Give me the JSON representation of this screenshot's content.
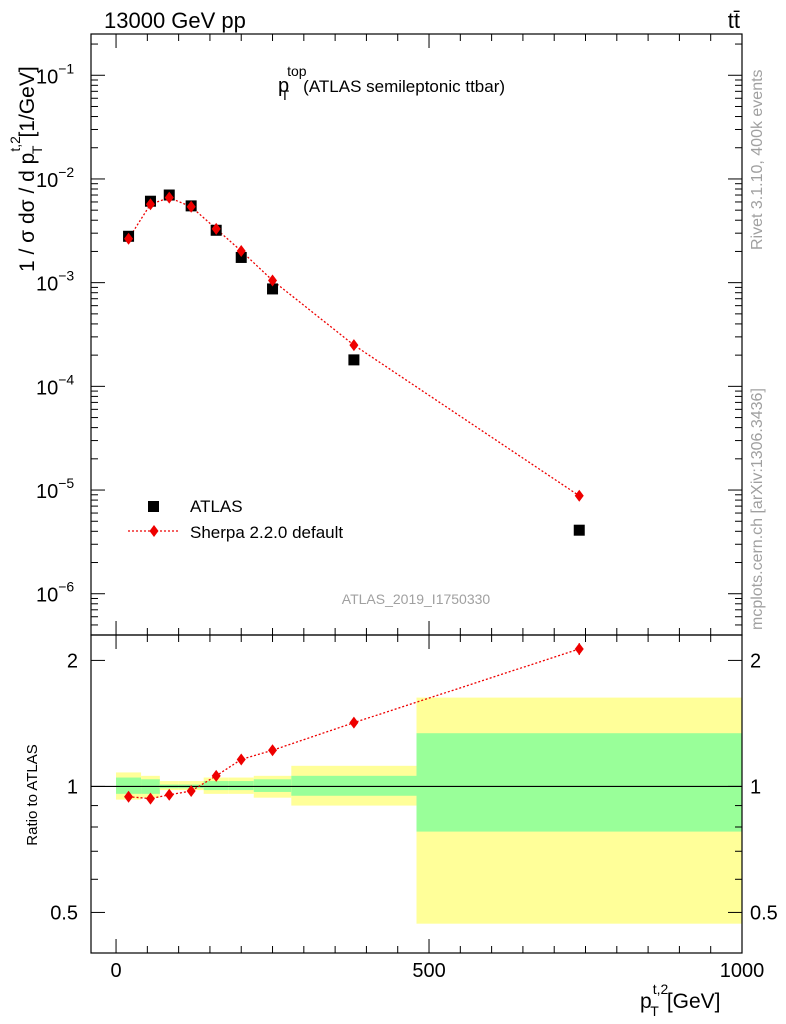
{
  "header": {
    "left": "13000 GeV pp",
    "right": "tt̄"
  },
  "side": {
    "rivet": "Rivet 3.1.10,  400k events",
    "mcplots": "mcplots.cern.ch [arXiv:1306.3436]"
  },
  "colors": {
    "sherpa": "#ee0000",
    "data": "#000000",
    "band_inner": "#99ff99",
    "band_outer": "#ffff99",
    "watermark": "#a0a0a0"
  },
  "chart_data": [
    {
      "type": "scatter",
      "panel": "main",
      "title": {
        "base": "p",
        "sup": "top",
        "sub": "T",
        "rest": "(ATLAS semileptonic ttbar)"
      },
      "analysis_label": "ATLAS_2019_I1750330",
      "ylabel": {
        "main": "1 / σ dσ / d p",
        "sup": "t,2",
        "sub": "T",
        "unit": "[1/GeV]"
      },
      "yscale": "log",
      "ylim": [
        4e-07,
        0.25
      ],
      "xlim": [
        -40,
        1000
      ],
      "yticks": [
        {
          "value": 1e-06,
          "base": "10",
          "exp": "−6"
        },
        {
          "value": 1e-05,
          "base": "10",
          "exp": "−5"
        },
        {
          "value": 0.0001,
          "base": "10",
          "exp": "−4"
        },
        {
          "value": 0.001,
          "base": "10",
          "exp": "−3"
        },
        {
          "value": 0.01,
          "base": "10",
          "exp": "−2"
        },
        {
          "value": 0.1,
          "base": "10",
          "exp": "−1"
        }
      ],
      "legend": {
        "placement": "bottom-left",
        "entries": [
          "ATLAS",
          "Sherpa 2.2.0 default"
        ]
      },
      "series": [
        {
          "name": "ATLAS",
          "marker": "square",
          "x": [
            20,
            55,
            85,
            120,
            160,
            200,
            250,
            380,
            740
          ],
          "y": [
            0.0028,
            0.0061,
            0.007,
            0.0055,
            0.0032,
            0.00175,
            0.00087,
            0.00018,
            4.1e-06
          ]
        },
        {
          "name": "Sherpa 2.2.0 default",
          "marker": "diamond",
          "x": [
            20,
            55,
            85,
            120,
            160,
            200,
            250,
            380,
            740
          ],
          "y": [
            0.00265,
            0.0057,
            0.0066,
            0.0054,
            0.0033,
            0.00202,
            0.00105,
            0.00025,
            8.8e-06
          ]
        }
      ]
    },
    {
      "type": "line",
      "panel": "ratio",
      "ylabel": "Ratio to ATLAS",
      "xlabel": {
        "base": "p",
        "sup": "t,2",
        "sub": "T",
        "unit": "[GeV]"
      },
      "yscale": "log",
      "ylim": [
        0.4,
        2.3
      ],
      "xlim": [
        -40,
        1000
      ],
      "xticks": [
        0,
        500,
        1000
      ],
      "yticks": [
        0.5,
        1,
        2
      ],
      "bands": [
        {
          "x0": 0,
          "x1": 40,
          "inner": [
            0.96,
            1.05
          ],
          "outer": [
            0.93,
            1.08
          ]
        },
        {
          "x0": 40,
          "x1": 70,
          "inner": [
            0.96,
            1.04
          ],
          "outer": [
            0.94,
            1.06
          ]
        },
        {
          "x0": 70,
          "x1": 100,
          "inner": [
            0.99,
            1.01
          ],
          "outer": [
            0.98,
            1.03
          ]
        },
        {
          "x0": 100,
          "x1": 140,
          "inner": [
            0.99,
            1.01
          ],
          "outer": [
            0.98,
            1.03
          ]
        },
        {
          "x0": 140,
          "x1": 180,
          "inner": [
            0.98,
            1.03
          ],
          "outer": [
            0.96,
            1.05
          ]
        },
        {
          "x0": 180,
          "x1": 220,
          "inner": [
            0.98,
            1.03
          ],
          "outer": [
            0.96,
            1.05
          ]
        },
        {
          "x0": 220,
          "x1": 280,
          "inner": [
            0.97,
            1.04
          ],
          "outer": [
            0.94,
            1.06
          ]
        },
        {
          "x0": 280,
          "x1": 480,
          "inner": [
            0.95,
            1.06
          ],
          "outer": [
            0.9,
            1.12
          ]
        },
        {
          "x0": 480,
          "x1": 1000,
          "inner": [
            0.78,
            1.34
          ],
          "outer": [
            0.47,
            1.63
          ]
        }
      ],
      "series": [
        {
          "name": "Sherpa 2.2.0 default / ATLAS",
          "x": [
            20,
            55,
            85,
            120,
            160,
            200,
            250,
            380,
            740
          ],
          "y": [
            0.945,
            0.935,
            0.955,
            0.975,
            1.06,
            1.16,
            1.22,
            1.42,
            2.13
          ],
          "err": [
            0.01,
            0.01,
            0.01,
            0.01,
            0.012,
            0.012,
            0.015,
            0.025,
            0.07
          ]
        }
      ]
    }
  ]
}
